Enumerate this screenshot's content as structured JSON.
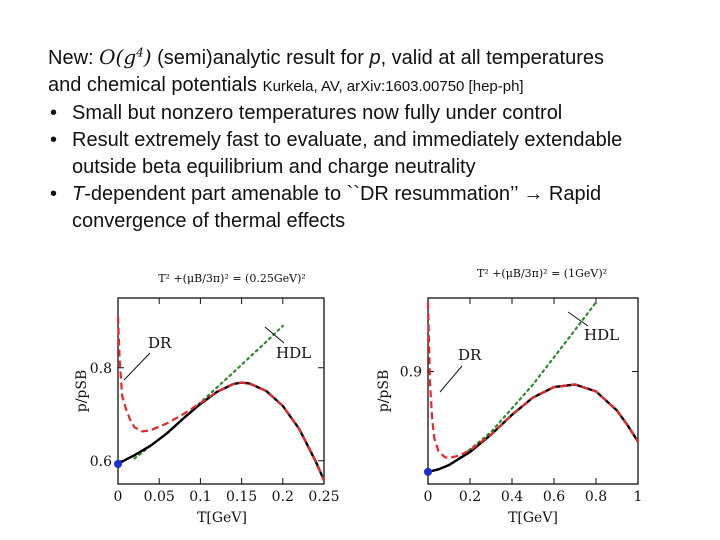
{
  "slide": {
    "heading_prefix": "New: ",
    "heading_math": "O(g",
    "heading_exp": "4",
    "heading_math_close": ")",
    "heading_mid": " (semi)analytic result for ",
    "heading_var": "p",
    "heading_suffix": ", valid at all temperatures",
    "heading_line2": "and chemical potentials ",
    "reference": "Kurkela, AV, arXiv:1603.00750 [hep-ph]",
    "bullets": [
      {
        "line1": "Small but nonzero temperatures now fully under control",
        "line2": ""
      },
      {
        "line1": "Result extremely fast to evaluate, and immediately extendable",
        "line2": "outside beta equilibrium and charge neutrality"
      },
      {
        "line1_var": "T",
        "line1": "-dependent part amenable to ``DR resummation’’ → Rapid",
        "line2": "convergence of thermal effects"
      }
    ]
  },
  "chart_data": [
    {
      "type": "line",
      "title": "T² +(μB/3π)² = (0.25GeV)²",
      "xlabel": "T[GeV]",
      "ylabel": "p/pSB",
      "xlim": [
        0,
        0.25
      ],
      "ylim": [
        0.55,
        0.95
      ],
      "x_ticks": [
        "0",
        "0.05",
        "0.1",
        "0.15",
        "0.2",
        "0.25"
      ],
      "y_ticks": [
        "0.6",
        "0.8"
      ],
      "y_tick_values": [
        0.6,
        0.8
      ],
      "colors": {
        "solid": "#000000",
        "dashed": "#e8262b",
        "dotted": "#2e8b2e",
        "point": "#1a2fd0"
      },
      "annotations": [
        "DR",
        "HDL"
      ],
      "series": [
        {
          "style": "solid",
          "x": [
            0,
            0.01,
            0.02,
            0.04,
            0.06,
            0.08,
            0.1,
            0.12,
            0.14,
            0.15,
            0.16,
            0.18,
            0.2,
            0.22,
            0.24,
            0.25
          ],
          "values": [
            0.593,
            0.603,
            0.612,
            0.633,
            0.66,
            0.692,
            0.722,
            0.748,
            0.765,
            0.768,
            0.766,
            0.75,
            0.718,
            0.668,
            0.598,
            0.558
          ]
        },
        {
          "style": "dashed",
          "x": [
            0,
            0.002,
            0.005,
            0.01,
            0.015,
            0.02,
            0.03,
            0.04,
            0.06,
            0.08,
            0.1,
            0.12,
            0.14,
            0.15,
            0.16,
            0.18,
            0.2,
            0.22,
            0.24,
            0.25
          ],
          "values": [
            0.91,
            0.82,
            0.74,
            0.71,
            0.687,
            0.672,
            0.663,
            0.666,
            0.681,
            0.701,
            0.724,
            0.748,
            0.765,
            0.768,
            0.766,
            0.75,
            0.718,
            0.668,
            0.598,
            0.558
          ]
        },
        {
          "style": "dotted",
          "x": [
            0.02,
            0.06,
            0.1,
            0.14,
            0.18,
            0.2
          ],
          "values": [
            0.605,
            0.66,
            0.725,
            0.79,
            0.856,
            0.89
          ]
        }
      ],
      "point": {
        "x": 0,
        "y": 0.593
      }
    },
    {
      "type": "line",
      "title": "T² +(μB/3π)² = (1GeV)²",
      "xlabel": "T[GeV]",
      "ylabel": "p/pSB",
      "xlim": [
        0,
        1
      ],
      "ylim": [
        0.77,
        0.985
      ],
      "x_ticks": [
        "0",
        "0.2",
        "0.4",
        "0.6",
        "0.8",
        "1"
      ],
      "y_ticks": [
        "0.9"
      ],
      "y_tick_values": [
        0.9
      ],
      "colors": {
        "solid": "#000000",
        "dashed": "#e8262b",
        "dotted": "#2e8b2e",
        "point": "#1a2fd0"
      },
      "annotations": [
        "DR",
        "HDL"
      ],
      "series": [
        {
          "style": "solid",
          "x": [
            0,
            0.05,
            0.1,
            0.2,
            0.3,
            0.4,
            0.5,
            0.6,
            0.7,
            0.8,
            0.9,
            0.95,
            1.0
          ],
          "values": [
            0.784,
            0.787,
            0.792,
            0.807,
            0.827,
            0.85,
            0.87,
            0.882,
            0.885,
            0.877,
            0.855,
            0.838,
            0.819
          ]
        },
        {
          "style": "dashed",
          "x": [
            0,
            0.005,
            0.01,
            0.02,
            0.03,
            0.05,
            0.08,
            0.1,
            0.15,
            0.2,
            0.3,
            0.4,
            0.5,
            0.6,
            0.7,
            0.8,
            0.9,
            0.95,
            1.0
          ],
          "values": [
            0.98,
            0.93,
            0.885,
            0.845,
            0.823,
            0.808,
            0.801,
            0.8,
            0.803,
            0.809,
            0.827,
            0.85,
            0.87,
            0.882,
            0.885,
            0.877,
            0.855,
            0.838,
            0.819
          ]
        },
        {
          "style": "dotted",
          "x": [
            0.15,
            0.3,
            0.5,
            0.7,
            0.8
          ],
          "values": [
            0.8,
            0.83,
            0.885,
            0.948,
            0.98
          ]
        }
      ],
      "point": {
        "x": 0,
        "y": 0.784
      }
    }
  ]
}
